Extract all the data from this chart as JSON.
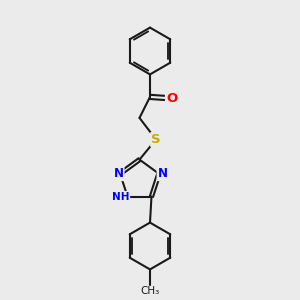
{
  "bg_color": "#ebebeb",
  "bond_color": "#1a1a1a",
  "bond_width": 1.5,
  "atom_colors": {
    "O": "#ff0000",
    "N": "#0000ff",
    "S": "#ccaa00",
    "C": "#1a1a1a"
  },
  "font_size": 8.5,
  "figsize": [
    3.0,
    3.0
  ],
  "dpi": 100,
  "xlim": [
    0,
    10
  ],
  "ylim": [
    0,
    10
  ]
}
